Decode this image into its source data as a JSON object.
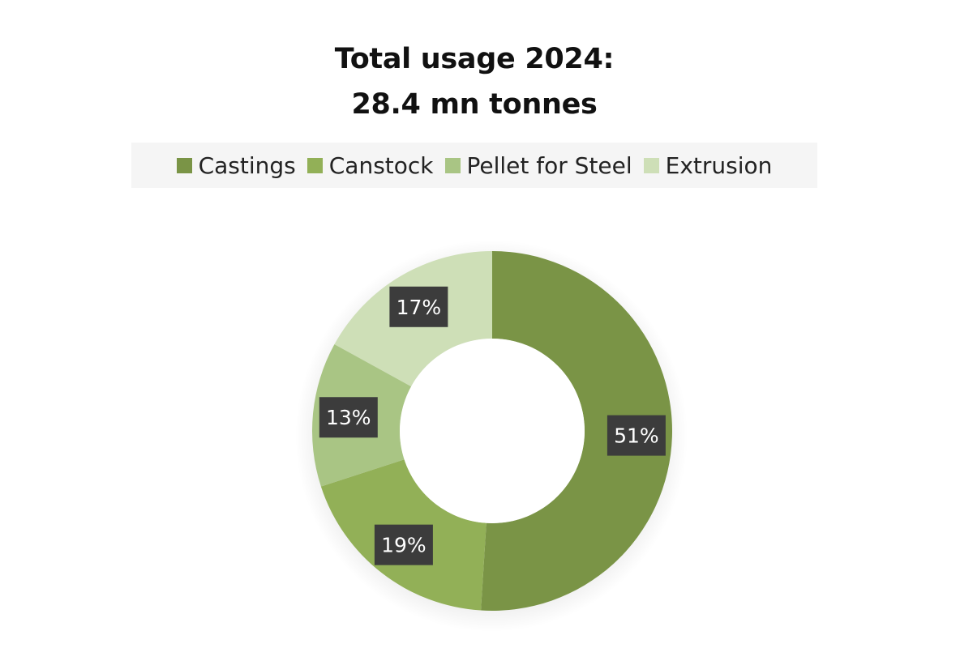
{
  "chart_data": {
    "type": "pie",
    "variant": "donut",
    "title_lines": [
      "Total usage 2024:",
      "28.4 mn tonnes"
    ],
    "legend_position": "top",
    "categories": [
      "Castings",
      "Canstock",
      "Pellet for Steel",
      "Extrusion"
    ],
    "values": [
      51,
      19,
      13,
      17
    ],
    "data_labels": [
      "51%",
      "19%",
      "13%",
      "17%"
    ],
    "colors": [
      "#7a9446",
      "#92b057",
      "#a9c584",
      "#cedfb7"
    ],
    "label_box_color": "#3c3c3c"
  }
}
